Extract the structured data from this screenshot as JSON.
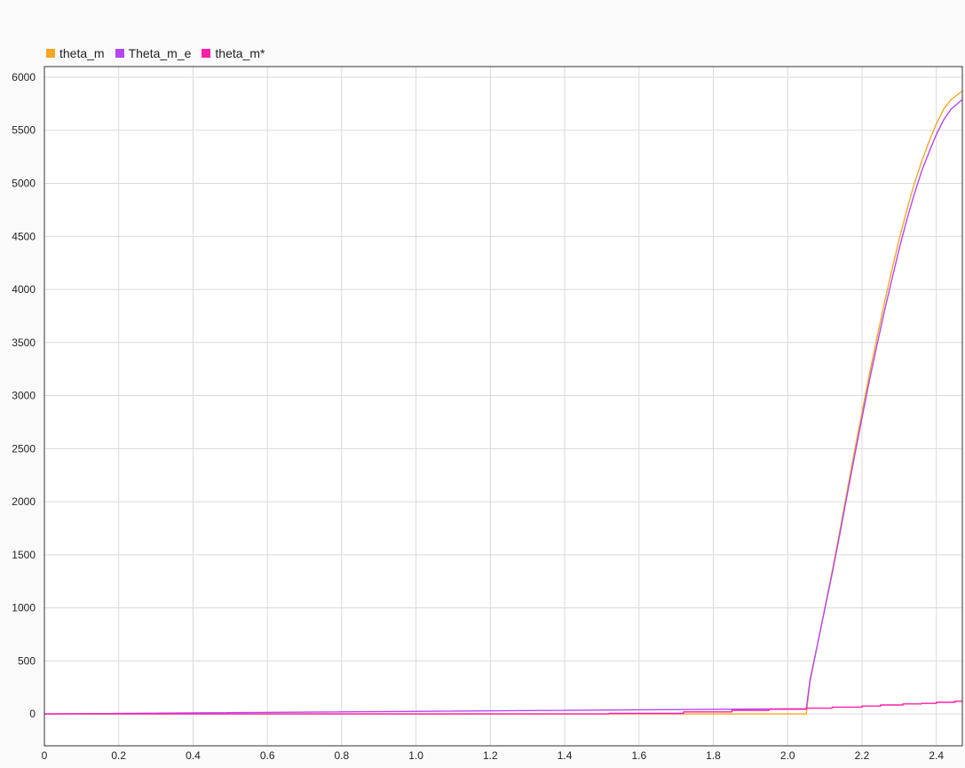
{
  "chart_data": {
    "type": "line",
    "title": "",
    "xlabel": "",
    "ylabel": "",
    "xlim": [
      0,
      2.47
    ],
    "ylim": [
      -300,
      6100
    ],
    "grid": true,
    "legend_position": "top-left",
    "x_ticks": [
      0,
      0.2,
      0.4,
      0.6,
      0.8,
      1.0,
      1.2,
      1.4,
      1.6,
      1.8,
      2.0,
      2.2,
      2.4
    ],
    "x_tick_labels": [
      "0",
      "0.2",
      "0.4",
      "0.6",
      "0.8",
      "1.0",
      "1.2",
      "1.4",
      "1.6",
      "1.8",
      "2.0",
      "2.2",
      "2.4"
    ],
    "y_ticks": [
      0,
      500,
      1000,
      1500,
      2000,
      2500,
      3000,
      3500,
      4000,
      4500,
      5000,
      5500,
      6000
    ],
    "y_tick_labels": [
      "0",
      "500",
      "1000",
      "1500",
      "2000",
      "2500",
      "3000",
      "3500",
      "4000",
      "4500",
      "5000",
      "5500",
      "6000"
    ],
    "series": [
      {
        "name": "theta_m",
        "color": "#f5a623",
        "x": [
          0,
          2.05,
          2.06,
          2.08,
          2.1,
          2.12,
          2.14,
          2.16,
          2.18,
          2.2,
          2.22,
          2.24,
          2.26,
          2.28,
          2.3,
          2.32,
          2.34,
          2.36,
          2.38,
          2.4,
          2.42,
          2.44,
          2.47
        ],
        "y": [
          0,
          0,
          300,
          650,
          1000,
          1350,
          1720,
          2100,
          2480,
          2840,
          3200,
          3540,
          3870,
          4180,
          4470,
          4740,
          4990,
          5200,
          5390,
          5560,
          5700,
          5790,
          5870
        ]
      },
      {
        "name": "Theta_m_e",
        "color": "#b347f7",
        "x": [
          0,
          2.05,
          2.06,
          2.08,
          2.1,
          2.12,
          2.14,
          2.16,
          2.18,
          2.2,
          2.22,
          2.24,
          2.26,
          2.28,
          2.3,
          2.32,
          2.34,
          2.36,
          2.38,
          2.4,
          2.42,
          2.44,
          2.47
        ],
        "y": [
          0,
          50,
          320,
          650,
          990,
          1330,
          1690,
          2060,
          2430,
          2790,
          3140,
          3470,
          3790,
          4090,
          4380,
          4650,
          4890,
          5110,
          5290,
          5460,
          5600,
          5700,
          5790
        ]
      },
      {
        "name": "theta_m*",
        "color": "#ff1fa8",
        "x": [
          0,
          1.52,
          1.52,
          1.72,
          1.72,
          1.85,
          1.85,
          1.95,
          1.95,
          2.05,
          2.05,
          2.12,
          2.12,
          2.2,
          2.2,
          2.25,
          2.25,
          2.31,
          2.31,
          2.36,
          2.36,
          2.4,
          2.4,
          2.45,
          2.45,
          2.47
        ],
        "y": [
          0,
          0,
          5,
          5,
          20,
          20,
          35,
          35,
          45,
          45,
          55,
          55,
          65,
          65,
          75,
          75,
          85,
          85,
          95,
          95,
          100,
          100,
          110,
          110,
          120,
          120
        ]
      }
    ]
  }
}
